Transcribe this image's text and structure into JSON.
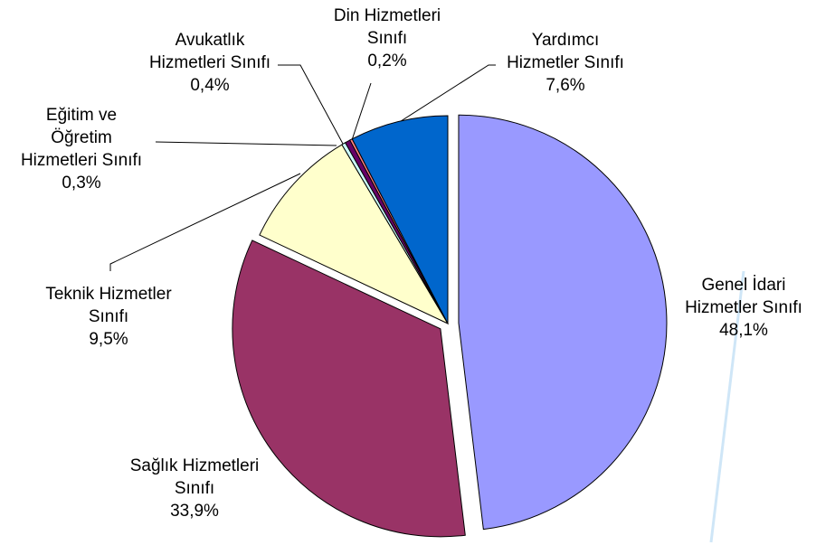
{
  "chart_data": {
    "type": "pie",
    "categories": [
      "Genel İdari Hizmetler Sınıfı",
      "Sağlık Hizmetleri Sınıfı",
      "Teknik Hizmetler Sınıfı",
      "Eğitim ve Öğretim Hizmetleri Sınıfı",
      "Avukatlık Hizmetleri Sınıfı",
      "Din Hizmetleri Sınıfı",
      "Yardımcı Hizmetler Sınıfı"
    ],
    "values": [
      48.1,
      33.9,
      9.5,
      0.3,
      0.4,
      0.2,
      7.6
    ],
    "value_labels": [
      "48,1%",
      "33,9%",
      "9,5%",
      "0,3%",
      "0,4%",
      "0,2%",
      "7,6%"
    ],
    "colors": [
      "#9999ff",
      "#993366",
      "#ffffcc",
      "#ccffff",
      "#660066",
      "#ff8080",
      "#0066cc"
    ]
  }
}
